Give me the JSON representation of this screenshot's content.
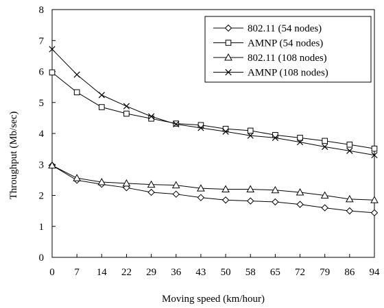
{
  "chart_data": {
    "type": "line",
    "title": "",
    "xlabel": "Moving speed (km/hour)",
    "ylabel": "Throughput (Mb/sec)",
    "categories": [
      "0",
      "7",
      "14",
      "22",
      "29",
      "36",
      "43",
      "50",
      "58",
      "65",
      "72",
      "79",
      "86",
      "94"
    ],
    "ylim": [
      0,
      8
    ],
    "yticks": [
      "0",
      "1",
      "2",
      "3",
      "4",
      "5",
      "6",
      "7",
      "8"
    ],
    "grid": false,
    "legend_position": "top-right",
    "series": [
      {
        "name": "802.11 (54 nodes)",
        "marker": "diamond",
        "values": [
          2.97,
          2.49,
          2.36,
          2.25,
          2.1,
          2.04,
          1.93,
          1.85,
          1.82,
          1.79,
          1.71,
          1.6,
          1.5,
          1.44
        ]
      },
      {
        "name": "AMNP (54 nodes)",
        "marker": "square",
        "values": [
          5.97,
          5.33,
          4.85,
          4.64,
          4.48,
          4.32,
          4.27,
          4.15,
          4.09,
          3.95,
          3.86,
          3.76,
          3.64,
          3.51
        ]
      },
      {
        "name": "802.11 (108 nodes)",
        "marker": "triangle",
        "values": [
          2.97,
          2.56,
          2.43,
          2.39,
          2.35,
          2.33,
          2.23,
          2.2,
          2.2,
          2.17,
          2.1,
          2.0,
          1.88,
          1.85
        ]
      },
      {
        "name": "AMNP (108 nodes)",
        "marker": "x",
        "values": [
          6.72,
          5.9,
          5.24,
          4.88,
          4.55,
          4.3,
          4.18,
          4.06,
          3.93,
          3.86,
          3.72,
          3.57,
          3.44,
          3.3
        ]
      }
    ]
  }
}
